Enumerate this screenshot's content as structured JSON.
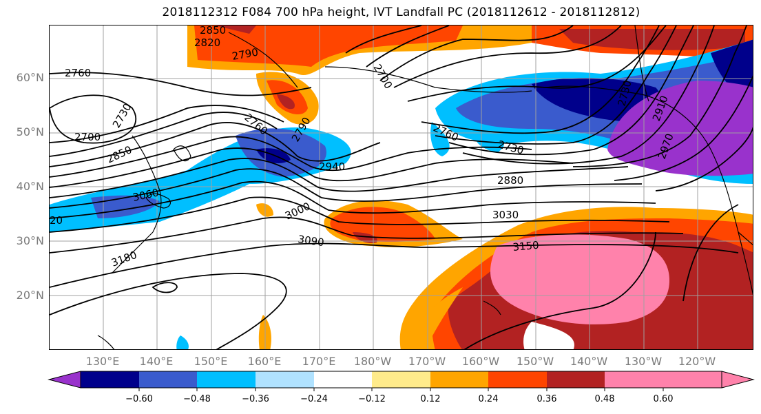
{
  "title": "2018112312 F084 700 hPa height, IVT Landfall PC (2018112612 - 2018112812)",
  "lat_labels": [
    "60°N",
    "50°N",
    "40°N",
    "30°N",
    "20°N"
  ],
  "lon_labels": [
    "130°E",
    "140°E",
    "150°E",
    "160°E",
    "170°E",
    "180°W",
    "170°W",
    "160°W",
    "150°W",
    "140°W",
    "130°W",
    "120°W"
  ],
  "contour_labels": [
    "2850",
    "2820",
    "2790",
    "2760",
    "2700",
    "2730",
    "2790",
    "2760",
    "2700",
    "2760",
    "2730",
    "2730",
    "2850",
    "2940",
    "2880",
    "3060",
    "3000",
    "3030",
    "3090",
    "3150",
    "3180",
    "2910",
    "2970",
    "20"
  ],
  "colorbar": {
    "ticks": [
      "−0.60",
      "−0.48",
      "−0.36",
      "−0.24",
      "−0.12",
      "0.12",
      "0.24",
      "0.36",
      "0.48",
      "0.60"
    ],
    "colors": [
      "#9932cc",
      "#00008b",
      "#3a5bcd",
      "#00bfff",
      "#b0e2ff",
      "#ffffff",
      "#ffeb8b",
      "#ffa500",
      "#ff4500",
      "#b22222",
      "#ff82ab"
    ]
  }
}
